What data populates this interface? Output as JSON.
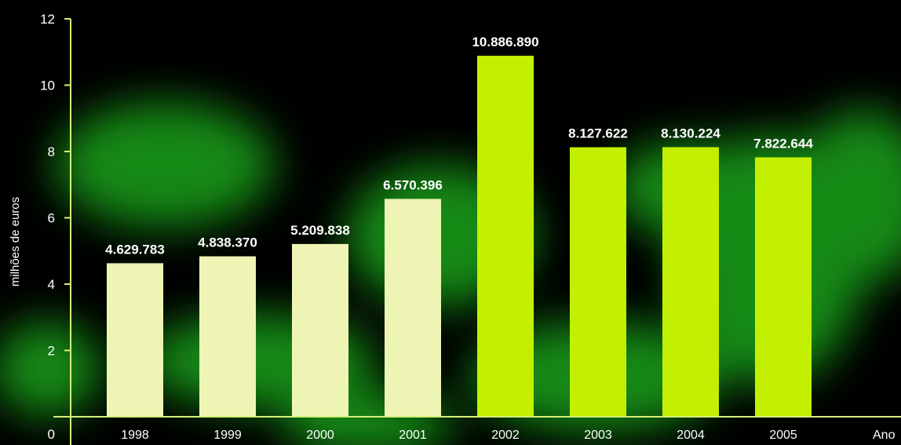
{
  "colors": {
    "background": "#000000",
    "glow": "#1fb81f",
    "axis": "#d4f07a",
    "bar_pale": "#eef5b4",
    "bar_bright": "#c2f000",
    "text": "#ffffff"
  },
  "chart_data": {
    "type": "bar",
    "title": "",
    "xlabel": "Ano",
    "ylabel": "milhões de euros",
    "ylim": [
      0,
      12
    ],
    "yticks": [
      0,
      2,
      4,
      6,
      8,
      10,
      12
    ],
    "grid": false,
    "categories": [
      "1998",
      "1999",
      "2000",
      "2001",
      "2002",
      "2003",
      "2004",
      "2005"
    ],
    "values": [
      4.629783,
      4.83837,
      5.209838,
      6.570396,
      10.88689,
      8.127622,
      8.130224,
      7.822644
    ],
    "value_labels": [
      "4.629.783",
      "4.838.370",
      "5.209.838",
      "6.570.396",
      "10.886.890",
      "8.127.622",
      "8.130.224",
      "7.822.644"
    ],
    "bar_color_keys": [
      "bar_pale",
      "bar_pale",
      "bar_pale",
      "bar_pale",
      "bar_bright",
      "bar_bright",
      "bar_bright",
      "bar_bright"
    ]
  }
}
